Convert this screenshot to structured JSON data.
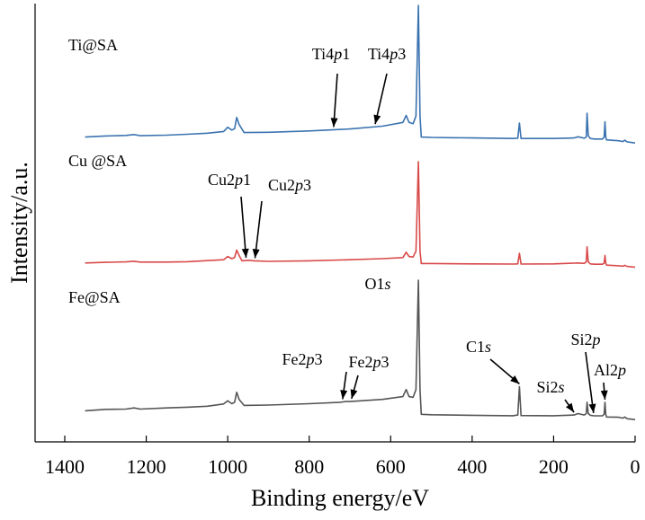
{
  "chart_data": {
    "type": "line",
    "xlabel": "Binding energy/eV",
    "ylabel": "Intensity/a.u.",
    "xlim": [
      1400,
      0
    ],
    "x_reversed": true,
    "xticks": [
      "1400",
      "1200",
      "1000",
      "800",
      "600",
      "400",
      "200",
      "0"
    ],
    "yticks_shown": false,
    "grid": false,
    "legend": "none",
    "series": [
      {
        "name": "Ti@SA",
        "color": "#3b73b0",
        "points": [
          [
            1350,
            0.06
          ],
          [
            1300,
            0.068
          ],
          [
            1250,
            0.072
          ],
          [
            1230,
            0.078
          ],
          [
            1215,
            0.07
          ],
          [
            1150,
            0.074
          ],
          [
            1100,
            0.08
          ],
          [
            1050,
            0.088
          ],
          [
            1010,
            0.1
          ],
          [
            1000,
            0.13
          ],
          [
            990,
            0.11
          ],
          [
            983,
            0.12
          ],
          [
            978,
            0.2
          ],
          [
            972,
            0.15
          ],
          [
            960,
            0.092
          ],
          [
            900,
            0.094
          ],
          [
            800,
            0.104
          ],
          [
            700,
            0.118
          ],
          [
            620,
            0.138
          ],
          [
            570,
            0.165
          ],
          [
            562,
            0.215
          ],
          [
            555,
            0.165
          ],
          [
            545,
            0.155
          ],
          [
            538,
            0.21
          ],
          [
            532,
            1.0
          ],
          [
            528,
            0.21
          ],
          [
            525,
            0.06
          ],
          [
            500,
            0.058
          ],
          [
            400,
            0.054
          ],
          [
            300,
            0.05
          ],
          [
            288,
            0.052
          ],
          [
            284,
            0.16
          ],
          [
            280,
            0.05
          ],
          [
            200,
            0.05
          ],
          [
            150,
            0.054
          ],
          [
            140,
            0.062
          ],
          [
            125,
            0.052
          ],
          [
            120,
            0.06
          ],
          [
            118,
            0.23
          ],
          [
            115,
            0.07
          ],
          [
            110,
            0.05
          ],
          [
            100,
            0.046
          ],
          [
            80,
            0.046
          ],
          [
            76,
            0.06
          ],
          [
            74,
            0.17
          ],
          [
            72,
            0.06
          ],
          [
            70,
            0.04
          ],
          [
            40,
            0.034
          ],
          [
            30,
            0.028
          ],
          [
            25,
            0.038
          ],
          [
            20,
            0.026
          ],
          [
            0,
            0.018
          ]
        ]
      },
      {
        "name": "Cu @SA",
        "color": "#d94a4a",
        "points": [
          [
            1350,
            0.06
          ],
          [
            1300,
            0.066
          ],
          [
            1250,
            0.07
          ],
          [
            1230,
            0.076
          ],
          [
            1215,
            0.068
          ],
          [
            1150,
            0.068
          ],
          [
            1100,
            0.072
          ],
          [
            1050,
            0.082
          ],
          [
            1010,
            0.09
          ],
          [
            1000,
            0.12
          ],
          [
            990,
            0.1
          ],
          [
            983,
            0.11
          ],
          [
            978,
            0.18
          ],
          [
            972,
            0.13
          ],
          [
            965,
            0.08
          ],
          [
            950,
            0.085
          ],
          [
            934,
            0.08
          ],
          [
            900,
            0.075
          ],
          [
            800,
            0.08
          ],
          [
            700,
            0.09
          ],
          [
            620,
            0.1
          ],
          [
            570,
            0.11
          ],
          [
            562,
            0.16
          ],
          [
            555,
            0.12
          ],
          [
            545,
            0.115
          ],
          [
            538,
            0.17
          ],
          [
            532,
            1.0
          ],
          [
            528,
            0.17
          ],
          [
            525,
            0.055
          ],
          [
            500,
            0.055
          ],
          [
            400,
            0.052
          ],
          [
            300,
            0.05
          ],
          [
            288,
            0.052
          ],
          [
            284,
            0.15
          ],
          [
            280,
            0.05
          ],
          [
            200,
            0.052
          ],
          [
            150,
            0.058
          ],
          [
            140,
            0.06
          ],
          [
            125,
            0.056
          ],
          [
            120,
            0.07
          ],
          [
            118,
            0.21
          ],
          [
            115,
            0.07
          ],
          [
            110,
            0.052
          ],
          [
            100,
            0.048
          ],
          [
            80,
            0.048
          ],
          [
            76,
            0.058
          ],
          [
            74,
            0.13
          ],
          [
            72,
            0.058
          ],
          [
            70,
            0.04
          ],
          [
            40,
            0.034
          ],
          [
            30,
            0.03
          ],
          [
            25,
            0.038
          ],
          [
            20,
            0.028
          ],
          [
            0,
            0.02
          ]
        ]
      },
      {
        "name": "Fe@SA",
        "color": "#555555",
        "points": [
          [
            1350,
            0.08
          ],
          [
            1300,
            0.09
          ],
          [
            1250,
            0.092
          ],
          [
            1230,
            0.1
          ],
          [
            1215,
            0.092
          ],
          [
            1150,
            0.1
          ],
          [
            1100,
            0.105
          ],
          [
            1050,
            0.112
          ],
          [
            1010,
            0.128
          ],
          [
            1000,
            0.15
          ],
          [
            990,
            0.13
          ],
          [
            983,
            0.14
          ],
          [
            978,
            0.21
          ],
          [
            972,
            0.16
          ],
          [
            960,
            0.118
          ],
          [
            900,
            0.12
          ],
          [
            800,
            0.13
          ],
          [
            724,
            0.14
          ],
          [
            711,
            0.145
          ],
          [
            700,
            0.145
          ],
          [
            620,
            0.16
          ],
          [
            570,
            0.18
          ],
          [
            562,
            0.23
          ],
          [
            555,
            0.18
          ],
          [
            545,
            0.175
          ],
          [
            538,
            0.23
          ],
          [
            532,
            1.0
          ],
          [
            528,
            0.23
          ],
          [
            525,
            0.055
          ],
          [
            500,
            0.052
          ],
          [
            400,
            0.048
          ],
          [
            300,
            0.045
          ],
          [
            288,
            0.05
          ],
          [
            284,
            0.25
          ],
          [
            280,
            0.046
          ],
          [
            200,
            0.045
          ],
          [
            150,
            0.05
          ],
          [
            140,
            0.06
          ],
          [
            125,
            0.05
          ],
          [
            120,
            0.06
          ],
          [
            118,
            0.14
          ],
          [
            115,
            0.06
          ],
          [
            110,
            0.048
          ],
          [
            100,
            0.044
          ],
          [
            80,
            0.045
          ],
          [
            76,
            0.056
          ],
          [
            74,
            0.14
          ],
          [
            72,
            0.054
          ],
          [
            70,
            0.036
          ],
          [
            40,
            0.034
          ],
          [
            30,
            0.028
          ],
          [
            25,
            0.036
          ],
          [
            20,
            0.024
          ],
          [
            0,
            0.018
          ]
        ]
      }
    ],
    "annotations": [
      {
        "text_main": "Ti4",
        "text_italic": "p",
        "text_tail": "1",
        "series": "Ti@SA",
        "x": 740
      },
      {
        "text_main": "Ti4",
        "text_italic": "p",
        "text_tail": "3",
        "series": "Ti@SA",
        "x": 638
      },
      {
        "text_main": "Cu2",
        "text_italic": "p",
        "text_tail": "1",
        "series": "Cu @SA",
        "x": 955
      },
      {
        "text_main": "Cu2",
        "text_italic": "p",
        "text_tail": "3",
        "series": "Cu @SA",
        "x": 933
      },
      {
        "text_main": "Fe2",
        "text_italic": "p",
        "text_tail": "3",
        "series": "Fe@SA",
        "x": 718
      },
      {
        "text_main": "Fe2",
        "text_italic": "p",
        "text_tail": "3",
        "series": "Fe@SA",
        "x": 696
      },
      {
        "text_main": "O1",
        "text_italic": "s",
        "text_tail": "",
        "series": "Fe@SA",
        "x": 532
      },
      {
        "text_main": "C1",
        "text_italic": "s",
        "text_tail": "",
        "series": "Fe@SA",
        "x": 284
      },
      {
        "text_main": "Si2",
        "text_italic": "s",
        "text_tail": "",
        "series": "Fe@SA",
        "x": 150
      },
      {
        "text_main": "Si2",
        "text_italic": "p",
        "text_tail": "",
        "series": "Fe@SA",
        "x": 102
      },
      {
        "text_main": "Al2",
        "text_italic": "p",
        "text_tail": "",
        "series": "Fe@SA",
        "x": 74
      }
    ]
  }
}
